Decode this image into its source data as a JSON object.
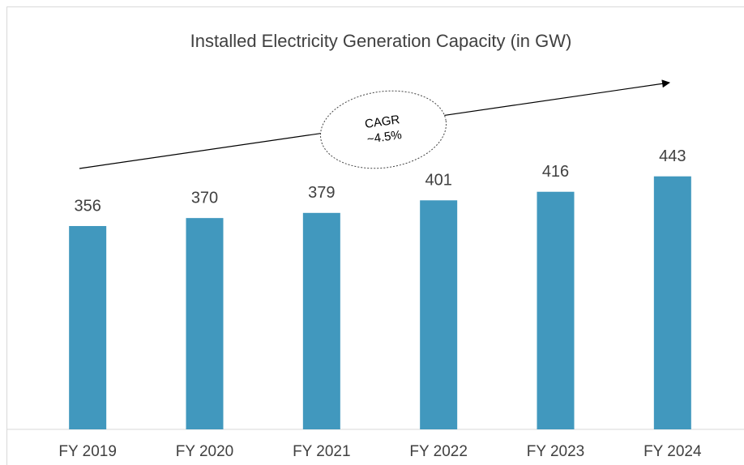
{
  "chart_data": {
    "type": "bar",
    "title": "Installed Electricity Generation Capacity (in GW)",
    "categories": [
      "FY 2019",
      "FY 2020",
      "FY 2021",
      "FY 2022",
      "FY 2023",
      "FY 2024"
    ],
    "values": [
      356,
      370,
      379,
      401,
      416,
      443
    ],
    "color": "#4198be",
    "ylim": [
      0,
      500
    ],
    "annotation": [
      "CAGR",
      "~4.5%"
    ]
  }
}
